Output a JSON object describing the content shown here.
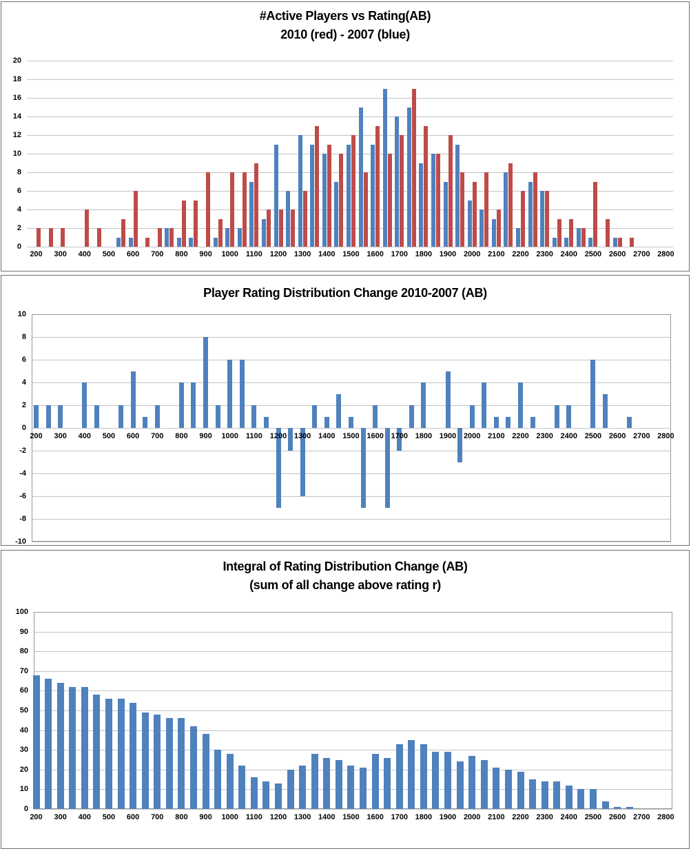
{
  "colors": {
    "series_blue": "#4F81BD",
    "series_red": "#BE4B48",
    "gridline": "#C3C3C3",
    "plot_border": "#969696",
    "panel_border": "#6E6E6E",
    "axis_text": "#000000",
    "title_text": "#000000",
    "background": "#FFFFFF"
  },
  "chart_data": [
    {
      "type": "bar",
      "title_lines": [
        "#Active Players vs Rating(AB)",
        "2010 (red) - 2007 (blue)"
      ],
      "grid": true,
      "legend_position": "none",
      "ylim": [
        0,
        20
      ],
      "ytick_step": 2,
      "xlabel": "",
      "ylabel": "",
      "x_buckets": [
        200,
        250,
        300,
        350,
        400,
        450,
        500,
        550,
        600,
        650,
        700,
        750,
        800,
        850,
        900,
        950,
        1000,
        1050,
        1100,
        1150,
        1200,
        1250,
        1300,
        1350,
        1400,
        1450,
        1500,
        1550,
        1600,
        1650,
        1700,
        1750,
        1800,
        1850,
        1900,
        1950,
        2000,
        2050,
        2100,
        2150,
        2200,
        2250,
        2300,
        2350,
        2400,
        2450,
        2500,
        2550,
        2600,
        2650,
        2700,
        2750,
        2800
      ],
      "x_tick_labels": [
        200,
        300,
        400,
        500,
        600,
        700,
        800,
        900,
        1000,
        1100,
        1200,
        1300,
        1400,
        1500,
        1600,
        1700,
        1800,
        1900,
        2000,
        2100,
        2200,
        2300,
        2400,
        2500,
        2600,
        2700,
        2800
      ],
      "series": [
        {
          "name": "2007",
          "color": "#4F81BD",
          "values": [
            0,
            0,
            0,
            0,
            0,
            0,
            0,
            1,
            1,
            0,
            0,
            2,
            1,
            1,
            0,
            1,
            2,
            2,
            7,
            3,
            11,
            6,
            12,
            11,
            10,
            7,
            11,
            15,
            11,
            17,
            14,
            15,
            9,
            10,
            7,
            11,
            5,
            4,
            3,
            8,
            2,
            7,
            6,
            1,
            1,
            2,
            1,
            0,
            1,
            0,
            0,
            0,
            0
          ]
        },
        {
          "name": "2010",
          "color": "#BE4B48",
          "values": [
            2,
            2,
            2,
            0,
            4,
            2,
            0,
            3,
            6,
            1,
            2,
            2,
            5,
            5,
            8,
            3,
            8,
            8,
            9,
            4,
            4,
            4,
            6,
            13,
            11,
            10,
            12,
            8,
            13,
            10,
            12,
            17,
            13,
            10,
            12,
            8,
            7,
            8,
            4,
            9,
            6,
            8,
            6,
            3,
            3,
            2,
            7,
            3,
            1,
            1,
            0,
            0,
            0
          ]
        }
      ]
    },
    {
      "type": "bar",
      "title_lines": [
        "Player Rating Distribution Change 2010-2007 (AB)"
      ],
      "grid": true,
      "legend_position": "none",
      "ylim": [
        -10,
        10
      ],
      "ytick_step": 2,
      "xlabel": "",
      "ylabel": "",
      "x_buckets": [
        200,
        250,
        300,
        350,
        400,
        450,
        500,
        550,
        600,
        650,
        700,
        750,
        800,
        850,
        900,
        950,
        1000,
        1050,
        1100,
        1150,
        1200,
        1250,
        1300,
        1350,
        1400,
        1450,
        1500,
        1550,
        1600,
        1650,
        1700,
        1750,
        1800,
        1850,
        1900,
        1950,
        2000,
        2050,
        2100,
        2150,
        2200,
        2250,
        2300,
        2350,
        2400,
        2450,
        2500,
        2550,
        2600,
        2650,
        2700,
        2750,
        2800
      ],
      "x_tick_labels": [
        200,
        300,
        400,
        500,
        600,
        700,
        800,
        900,
        1000,
        1100,
        1200,
        1300,
        1400,
        1500,
        1600,
        1700,
        1800,
        1900,
        2000,
        2100,
        2200,
        2300,
        2400,
        2500,
        2600,
        2700,
        2800
      ],
      "series": [
        {
          "name": "change-2010-2007",
          "color": "#4F81BD",
          "values": [
            2,
            2,
            2,
            0,
            4,
            2,
            0,
            2,
            5,
            1,
            2,
            0,
            4,
            4,
            8,
            2,
            6,
            6,
            2,
            1,
            -7,
            -2,
            -6,
            2,
            1,
            3,
            1,
            -7,
            2,
            -7,
            -2,
            2,
            4,
            0,
            5,
            -3,
            2,
            4,
            1,
            1,
            4,
            1,
            0,
            2,
            2,
            0,
            6,
            3,
            0,
            1,
            0,
            0,
            0
          ]
        }
      ]
    },
    {
      "type": "bar",
      "title_lines": [
        "Integral of Rating Distribution Change (AB)",
        "(sum of all change above rating r)"
      ],
      "grid": true,
      "legend_position": "none",
      "ylim": [
        0,
        100
      ],
      "ytick_step": 10,
      "xlabel": "",
      "ylabel": "",
      "x_buckets": [
        200,
        250,
        300,
        350,
        400,
        450,
        500,
        550,
        600,
        650,
        700,
        750,
        800,
        850,
        900,
        950,
        1000,
        1050,
        1100,
        1150,
        1200,
        1250,
        1300,
        1350,
        1400,
        1450,
        1500,
        1550,
        1600,
        1650,
        1700,
        1750,
        1800,
        1850,
        1900,
        1950,
        2000,
        2050,
        2100,
        2150,
        2200,
        2250,
        2300,
        2350,
        2400,
        2450,
        2500,
        2550,
        2600,
        2650,
        2700,
        2750,
        2800
      ],
      "x_tick_labels": [
        200,
        300,
        400,
        500,
        600,
        700,
        800,
        900,
        1000,
        1100,
        1200,
        1300,
        1400,
        1500,
        1600,
        1700,
        1800,
        1900,
        2000,
        2100,
        2200,
        2300,
        2400,
        2500,
        2600,
        2700,
        2800
      ],
      "series": [
        {
          "name": "integral",
          "color": "#4F81BD",
          "values": [
            68,
            66,
            64,
            62,
            62,
            58,
            56,
            56,
            54,
            49,
            48,
            46,
            46,
            42,
            38,
            30,
            28,
            22,
            16,
            14,
            13,
            20,
            22,
            28,
            26,
            25,
            22,
            21,
            28,
            26,
            33,
            35,
            33,
            29,
            29,
            24,
            27,
            25,
            21,
            20,
            19,
            15,
            14,
            14,
            12,
            10,
            10,
            4,
            1,
            1,
            0,
            0,
            0
          ]
        }
      ]
    }
  ]
}
